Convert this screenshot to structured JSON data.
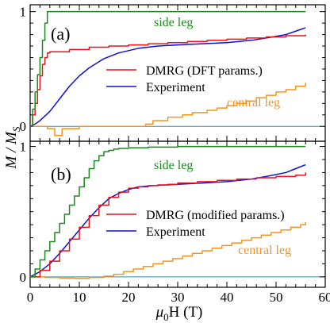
{
  "figure": {
    "ylabel_main": "M / M",
    "ylabel_sub": "S",
    "xlabel_main": "μ",
    "xlabel_sub": "0",
    "xlabel_rest": "H (T)"
  },
  "chart_data": [
    {
      "panel_label": "(a)",
      "type": "line",
      "x_range": [
        0,
        60
      ],
      "y_range": [
        -0.13,
        1.06
      ],
      "x_ticks": [
        0,
        10,
        20,
        30,
        40,
        50,
        60
      ],
      "y_ticks": [
        0,
        1
      ],
      "x_tick_labels": [],
      "y_tick_labels": [
        "0",
        "1"
      ],
      "series": [
        {
          "name": "side leg",
          "color": "#1a8a1a",
          "style": "step",
          "x": [
            0,
            0.5,
            1,
            1.5,
            2,
            2.5,
            3,
            3.5,
            4,
            56
          ],
          "y": [
            0,
            0.15,
            0.3,
            0.45,
            0.6,
            0.75,
            0.9,
            1.0,
            1.0,
            1.0
          ]
        },
        {
          "name": "DMRG (DFT params.)",
          "color": "#e8141a",
          "style": "step",
          "x": [
            0,
            0.5,
            1,
            1.5,
            2,
            2.5,
            3,
            3.5,
            4,
            8,
            12,
            16,
            20,
            24,
            28,
            32,
            36,
            40,
            44,
            48,
            52,
            56
          ],
          "y": [
            0,
            0.1,
            0.2,
            0.32,
            0.44,
            0.54,
            0.6,
            0.64,
            0.65,
            0.67,
            0.69,
            0.7,
            0.71,
            0.72,
            0.73,
            0.74,
            0.75,
            0.76,
            0.77,
            0.78,
            0.79,
            0.8
          ]
        },
        {
          "name": "Experiment",
          "color": "#1010d8",
          "style": "line",
          "x": [
            0,
            1,
            2,
            4,
            6,
            8,
            10,
            12,
            15,
            18,
            22,
            26,
            30,
            35,
            40,
            45,
            48,
            52,
            54,
            56
          ],
          "y": [
            0,
            0.02,
            0.05,
            0.13,
            0.24,
            0.35,
            0.44,
            0.51,
            0.59,
            0.64,
            0.68,
            0.7,
            0.71,
            0.72,
            0.73,
            0.75,
            0.77,
            0.8,
            0.83,
            0.86
          ]
        },
        {
          "name": "central leg",
          "color": "#f5931e",
          "style": "step",
          "x": [
            0,
            3.5,
            5,
            6.5,
            10,
            22,
            23.5,
            25,
            28,
            31,
            33,
            36,
            38,
            40,
            42,
            44,
            46,
            48,
            50,
            52,
            54,
            56
          ],
          "y": [
            0,
            -0.02,
            -0.08,
            -0.02,
            0.0,
            0.0,
            0.02,
            0.05,
            0.08,
            0.1,
            0.12,
            0.14,
            0.16,
            0.18,
            0.2,
            0.22,
            0.25,
            0.27,
            0.3,
            0.32,
            0.35,
            0.38
          ]
        }
      ]
    },
    {
      "panel_label": "(b)",
      "type": "line",
      "x_range": [
        0,
        60
      ],
      "y_range": [
        -0.08,
        1.04
      ],
      "x_ticks": [
        0,
        10,
        20,
        30,
        40,
        50,
        60
      ],
      "y_ticks": [
        0,
        1
      ],
      "x_tick_labels": [
        "0",
        "10",
        "20",
        "30",
        "40",
        "50",
        "60"
      ],
      "y_tick_labels": [
        "0",
        "1"
      ],
      "series": [
        {
          "name": "side leg",
          "color": "#1a8a1a",
          "style": "step",
          "x": [
            0,
            1,
            2,
            3,
            4,
            5,
            6,
            7,
            8,
            9,
            10,
            11,
            12,
            13,
            14,
            15,
            16,
            17,
            18,
            20,
            24,
            30,
            40,
            56
          ],
          "y": [
            0,
            0.06,
            0.13,
            0.2,
            0.27,
            0.34,
            0.41,
            0.48,
            0.55,
            0.62,
            0.69,
            0.76,
            0.83,
            0.89,
            0.93,
            0.96,
            0.97,
            0.98,
            0.985,
            0.99,
            0.995,
            1.0,
            1.0,
            1.0
          ]
        },
        {
          "name": "DMRG (modified params.)",
          "color": "#e8141a",
          "style": "step",
          "x": [
            0,
            2,
            4,
            6,
            8,
            10,
            12,
            14,
            16,
            18,
            20,
            22,
            24,
            26,
            28,
            30,
            34,
            38,
            42,
            46,
            50,
            54,
            56
          ],
          "y": [
            0,
            0.05,
            0.12,
            0.2,
            0.29,
            0.38,
            0.47,
            0.55,
            0.61,
            0.65,
            0.68,
            0.69,
            0.7,
            0.705,
            0.71,
            0.72,
            0.73,
            0.74,
            0.75,
            0.76,
            0.77,
            0.78,
            0.8
          ]
        },
        {
          "name": "Experiment",
          "color": "#1010d8",
          "style": "line",
          "x": [
            0,
            2,
            4,
            6,
            8,
            10,
            12,
            14,
            16,
            18,
            20,
            22,
            25,
            30,
            35,
            40,
            45,
            48,
            52,
            54,
            56
          ],
          "y": [
            0,
            0.04,
            0.1,
            0.18,
            0.27,
            0.36,
            0.45,
            0.53,
            0.6,
            0.64,
            0.67,
            0.69,
            0.7,
            0.71,
            0.72,
            0.73,
            0.75,
            0.77,
            0.8,
            0.83,
            0.86
          ]
        },
        {
          "name": "central leg",
          "color": "#f5931e",
          "style": "step",
          "x": [
            0,
            3,
            6,
            9,
            12,
            15,
            17,
            19,
            21,
            23,
            25,
            27,
            29,
            31,
            33,
            35,
            37,
            39,
            41,
            43,
            45,
            47,
            49,
            51,
            53,
            55,
            56
          ],
          "y": [
            0,
            -0.005,
            -0.01,
            -0.012,
            -0.005,
            0.005,
            0.02,
            0.04,
            0.06,
            0.08,
            0.1,
            0.12,
            0.14,
            0.16,
            0.18,
            0.2,
            0.22,
            0.24,
            0.26,
            0.28,
            0.3,
            0.32,
            0.34,
            0.36,
            0.38,
            0.4,
            0.42
          ]
        }
      ]
    }
  ],
  "colors": {
    "zero_line": "#2a8fa0",
    "frame": "#000000"
  }
}
